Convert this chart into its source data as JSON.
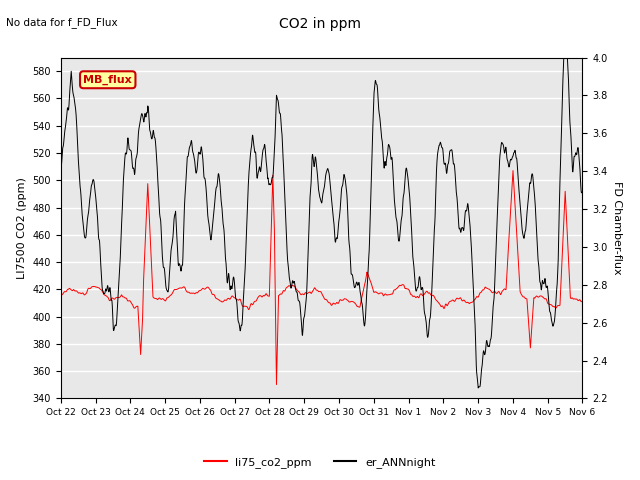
{
  "title": "CO2 in ppm",
  "subtitle": "No data for f_FD_Flux",
  "ylabel_left": "LI7500 CO2 (ppm)",
  "ylabel_right": "FD Chamber-flux",
  "ylim_left": [
    340,
    590
  ],
  "ylim_right": [
    2.2,
    4.0
  ],
  "yticks_left": [
    340,
    360,
    380,
    400,
    420,
    440,
    460,
    480,
    500,
    520,
    540,
    560,
    580
  ],
  "yticks_right": [
    2.2,
    2.4,
    2.6,
    2.8,
    3.0,
    3.2,
    3.4,
    3.6,
    3.8,
    4.0
  ],
  "xtick_labels": [
    "Oct 22",
    "Oct 23",
    "Oct 24",
    "Oct 25",
    "Oct 26",
    "Oct 27",
    "Oct 28",
    "Oct 29",
    "Oct 30",
    "Oct 31",
    "Nov 1",
    "Nov 2",
    "Nov 3",
    "Nov 4",
    "Nov 5",
    "Nov 6"
  ],
  "legend_entries": [
    "li75_co2_ppm",
    "er_ANNnight"
  ],
  "line_colors": [
    "red",
    "black"
  ],
  "mb_flux_box_color": "#ffffa0",
  "mb_flux_text_color": "#cc0000",
  "mb_flux_border_color": "#cc0000",
  "plot_bg_color": "#e8e8e8",
  "grid_color": "#ffffff",
  "fig_bg_color": "#ffffff"
}
